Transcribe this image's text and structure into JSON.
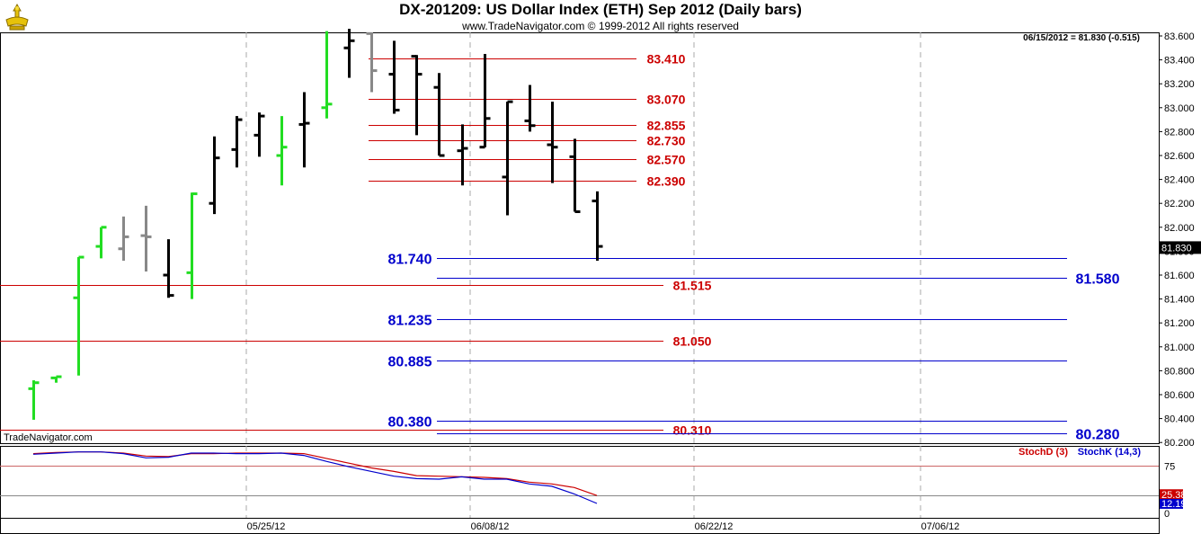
{
  "header": {
    "title": "DX-201209:  US Dollar Index (ETH) Sep 2012  (Daily bars)",
    "copyright": "www.TradeNavigator.com © 1999-2012 All rights reserved",
    "last_readout": "06/15/2012 = 81.830 (-0.515)",
    "source_label": "TradeNavigator.com"
  },
  "colors": {
    "bar_default": "#000000",
    "bar_up": "#22dd22",
    "bar_gray": "#888888",
    "resistance": "#cc0000",
    "support": "#0000cc",
    "stoch_d": "#cc0000",
    "stoch_k": "#0000cc"
  },
  "chart_data": [
    {
      "type": "ohlc",
      "title": "DX-201209:  US Dollar Index (ETH) Sep 2012  (Daily bars)",
      "ylim": [
        80.18,
        83.68
      ],
      "y_ticks": [
        "83.600",
        "83.400",
        "83.200",
        "83.000",
        "82.800",
        "82.600",
        "82.400",
        "82.200",
        "82.000",
        "81.800",
        "81.600",
        "81.400",
        "81.200",
        "81.000",
        "80.800",
        "80.600",
        "80.400",
        "80.200"
      ],
      "x_ticks": [
        "05/25/12",
        "06/08/12",
        "06/22/12",
        "07/06/12"
      ],
      "last_price": "81.830",
      "bars": [
        {
          "o": 80.65,
          "h": 80.72,
          "l": 80.39,
          "c": 80.7,
          "color": "up"
        },
        {
          "o": 80.74,
          "h": 80.75,
          "l": 80.7,
          "c": 80.75,
          "color": "up"
        },
        {
          "o": 81.41,
          "h": 81.75,
          "l": 80.76,
          "c": 81.75,
          "color": "up"
        },
        {
          "o": 81.84,
          "h": 82.0,
          "l": 81.74,
          "c": 82.0,
          "color": "up"
        },
        {
          "o": 81.82,
          "h": 82.09,
          "l": 81.72,
          "c": 81.92,
          "color": "gray"
        },
        {
          "o": 81.93,
          "h": 82.18,
          "l": 81.63,
          "c": 81.92,
          "color": "gray"
        },
        {
          "o": 81.6,
          "h": 81.9,
          "l": 81.41,
          "c": 81.43,
          "color": "black"
        },
        {
          "o": 81.62,
          "h": 82.29,
          "l": 81.4,
          "c": 82.28,
          "color": "up"
        },
        {
          "o": 82.2,
          "h": 82.76,
          "l": 82.11,
          "c": 82.58,
          "color": "black"
        },
        {
          "o": 82.65,
          "h": 82.93,
          "l": 82.5,
          "c": 82.9,
          "color": "black"
        },
        {
          "o": 82.77,
          "h": 82.96,
          "l": 82.59,
          "c": 82.93,
          "color": "black"
        },
        {
          "o": 82.6,
          "h": 82.93,
          "l": 82.35,
          "c": 82.67,
          "color": "up"
        },
        {
          "o": 82.86,
          "h": 83.13,
          "l": 82.5,
          "c": 82.87,
          "color": "black"
        },
        {
          "o": 83.0,
          "h": 83.64,
          "l": 82.91,
          "c": 83.03,
          "color": "up"
        },
        {
          "o": 83.5,
          "h": 83.66,
          "l": 83.25,
          "c": 83.56,
          "color": "black"
        },
        {
          "o": 83.62,
          "h": 83.63,
          "l": 83.13,
          "c": 83.31,
          "color": "gray"
        },
        {
          "o": 83.28,
          "h": 83.56,
          "l": 82.95,
          "c": 82.98,
          "color": "black"
        },
        {
          "o": 83.43,
          "h": 83.44,
          "l": 82.77,
          "c": 83.28,
          "color": "black"
        },
        {
          "o": 83.17,
          "h": 83.29,
          "l": 82.6,
          "c": 82.6,
          "color": "black"
        },
        {
          "o": 82.64,
          "h": 82.86,
          "l": 82.35,
          "c": 82.66,
          "color": "black"
        },
        {
          "o": 82.67,
          "h": 83.45,
          "l": 82.67,
          "c": 82.91,
          "color": "black"
        },
        {
          "o": 82.42,
          "h": 83.05,
          "l": 82.1,
          "c": 83.05,
          "color": "black"
        },
        {
          "o": 82.89,
          "h": 83.19,
          "l": 82.8,
          "c": 82.85,
          "color": "black"
        },
        {
          "o": 82.69,
          "h": 83.05,
          "l": 82.37,
          "c": 82.67,
          "color": "black"
        },
        {
          "o": 82.59,
          "h": 82.74,
          "l": 82.13,
          "c": 82.13,
          "color": "black"
        },
        {
          "o": 82.22,
          "h": 82.3,
          "l": 81.72,
          "c": 81.84,
          "color": "black"
        }
      ],
      "resistance_levels": [
        {
          "value": 83.41,
          "label": "83.410"
        },
        {
          "value": 83.07,
          "label": "83.070"
        },
        {
          "value": 82.855,
          "label": "82.855"
        },
        {
          "value": 82.73,
          "label": "82.730"
        },
        {
          "value": 82.57,
          "label": "82.570"
        },
        {
          "value": 82.39,
          "label": "82.390"
        },
        {
          "value": 81.515,
          "label": "81.515"
        },
        {
          "value": 81.05,
          "label": "81.050"
        },
        {
          "value": 80.31,
          "label": "80.310"
        }
      ],
      "support_levels": [
        {
          "value": 81.74,
          "label": "81.740"
        },
        {
          "value": 81.58,
          "label": "81.580"
        },
        {
          "value": 81.235,
          "label": "81.235"
        },
        {
          "value": 80.885,
          "label": "80.885"
        },
        {
          "value": 80.38,
          "label": "80.380"
        },
        {
          "value": 80.28,
          "label": "80.280"
        }
      ],
      "grid": true
    },
    {
      "type": "line",
      "title": "Stochastic",
      "ylim": [
        0,
        100
      ],
      "y_ticks": [
        "75",
        "25.38",
        "12.19",
        "0"
      ],
      "series": [
        {
          "name": "StochD (3)",
          "values": [
            96,
            98,
            99,
            99,
            97,
            92,
            91,
            96,
            96,
            97,
            97,
            97,
            96,
            88,
            80,
            72,
            66,
            59,
            58,
            57,
            56,
            54,
            48,
            45,
            39,
            25.38
          ]
        },
        {
          "name": "StochK (14,3)",
          "values": [
            95,
            97,
            99,
            99,
            96,
            89,
            90,
            97,
            97,
            96,
            96,
            97,
            93,
            83,
            74,
            66,
            58,
            54,
            53,
            57,
            53,
            53,
            45,
            41,
            28,
            12.19
          ]
        }
      ]
    }
  ]
}
